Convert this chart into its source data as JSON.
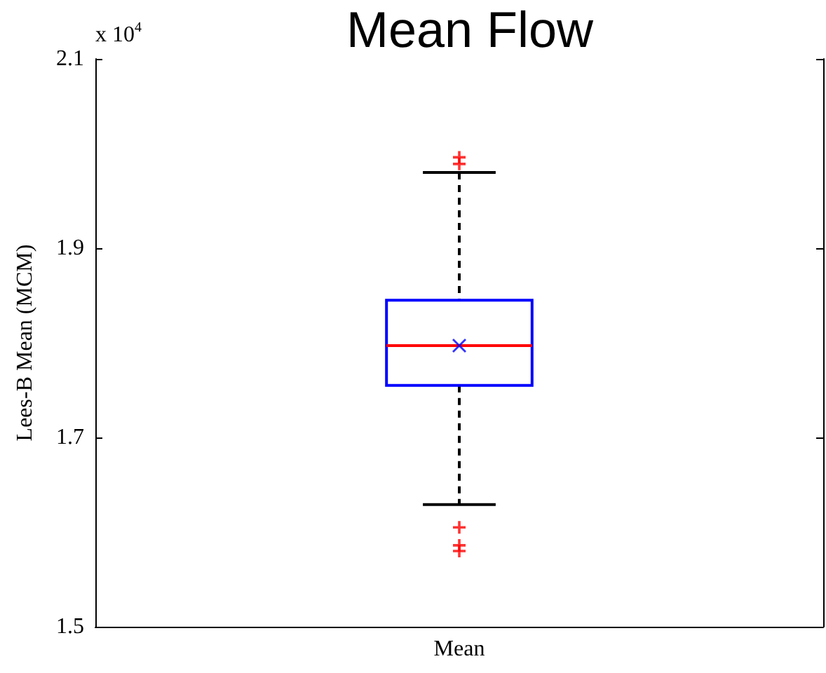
{
  "chart_data": {
    "type": "box",
    "title": "Mean Flow",
    "ylabel": "Lees-B Mean (MCM)",
    "categories": [
      "Mean"
    ],
    "series": [
      {
        "color": "#0000ff",
        "boxes": [
          {
            "low": 1.629,
            "q1": 1.755,
            "median": 1.797,
            "q3": 1.845,
            "high": 1.98,
            "mean": 1.797,
            "outliers": [
              1.996,
              1.989,
              1.605,
              1.586,
              1.58
            ]
          }
        ]
      }
    ],
    "ylim": [
      1.5,
      2.1
    ],
    "yticks": [
      1.5,
      1.7,
      1.9,
      2.1
    ],
    "annotations": [
      "x 10$^{4}$"
    ]
  }
}
